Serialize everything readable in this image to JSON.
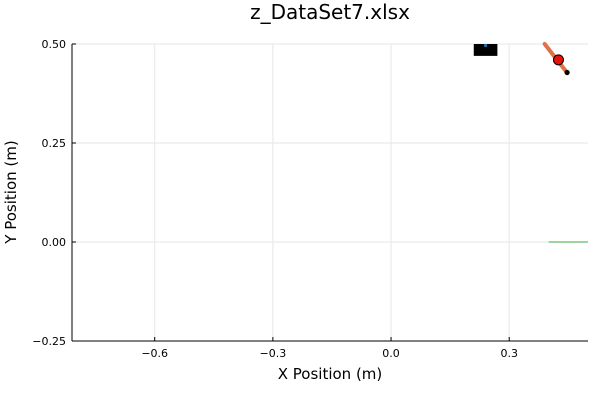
{
  "chart_data": {
    "type": "scatter",
    "title": "z_DataSet7.xlsx",
    "xlabel": "X Position (m)",
    "ylabel": "Y Position (m)",
    "xlim": [
      -0.81,
      0.5
    ],
    "ylim": [
      -0.25,
      0.5
    ],
    "grid": true,
    "x_ticks": [
      -0.6,
      -0.3,
      0.0,
      0.3
    ],
    "x_tick_labels": [
      "−0.6",
      "−0.3",
      "0.0",
      "0.3"
    ],
    "y_ticks": [
      -0.25,
      0.0,
      0.25,
      0.5
    ],
    "y_tick_labels": [
      "−0.25",
      "0.00",
      "0.25",
      "0.50"
    ],
    "elements": {
      "block": {
        "x": [
          0.21,
          0.27
        ],
        "y": [
          0.47,
          0.5
        ],
        "color": "#000000",
        "marker_color": "#1f77b4"
      },
      "link": {
        "x": [
          0.39,
          0.445
        ],
        "y": [
          0.5,
          0.43
        ],
        "color": "#e26f46"
      },
      "joint": {
        "x": 0.425,
        "y": 0.46,
        "color": "#e3120b"
      },
      "endpoint": {
        "x": 0.447,
        "y": 0.428,
        "color": "#000000"
      },
      "ground": {
        "x": [
          0.4,
          0.5
        ],
        "y": [
          0.0,
          0.0
        ],
        "color": "#7fc77f"
      }
    }
  }
}
